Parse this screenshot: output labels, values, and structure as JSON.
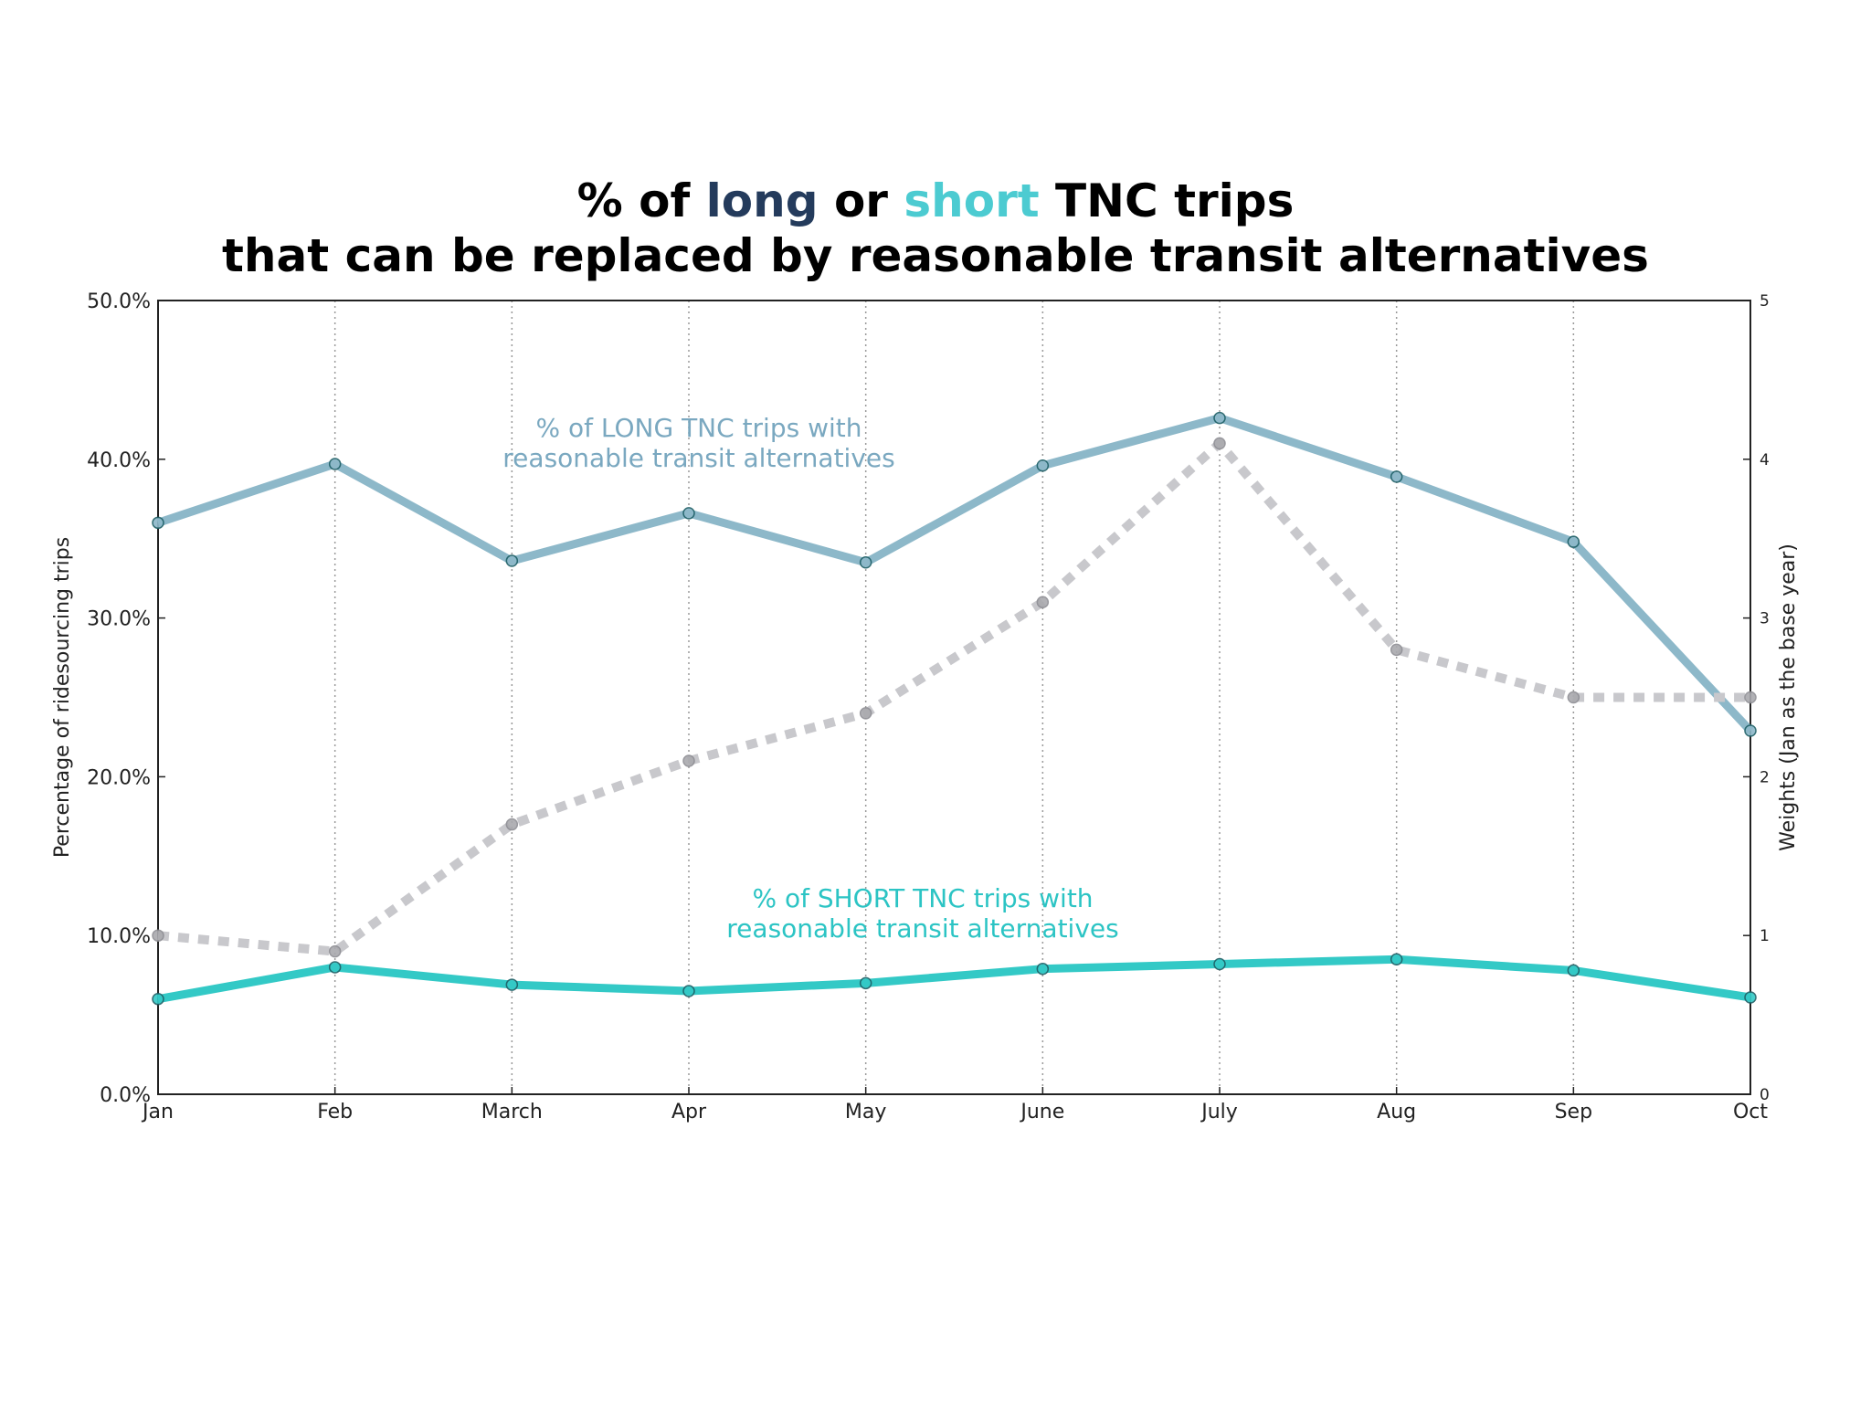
{
  "title": {
    "line1_pre": "% of ",
    "line1_long": "long",
    "line1_mid": " or ",
    "line1_short": "short",
    "line1_post": " TNC trips",
    "line2": "that can be replaced by reasonable transit alternatives"
  },
  "chart_data": {
    "type": "line",
    "categories": [
      "Jan",
      "Feb",
      "March",
      "Apr",
      "May",
      "June",
      "July",
      "Aug",
      "Sep",
      "Oct"
    ],
    "ylabel_left": "Percentage of ridesourcing trips",
    "ylabel_right": "Weights (Jan as the base year)",
    "ylim_left": [
      0,
      50
    ],
    "ylim_right": [
      0,
      5
    ],
    "yticks_left": [
      "0.0%",
      "10.0%",
      "20.0%",
      "30.0%",
      "40.0%",
      "50.0%"
    ],
    "yticks_right": [
      "0",
      "1",
      "2",
      "3",
      "4",
      "5"
    ],
    "grid": "vertical dotted at each month",
    "series": [
      {
        "axis": "left",
        "color": "#8db8c9",
        "style": "solid",
        "values": [
          36.0,
          39.7,
          33.6,
          36.6,
          33.5,
          39.6,
          42.6,
          38.9,
          34.8,
          22.9
        ],
        "annotation": [
          "% of LONG TNC trips with",
          "reasonable transit alternatives"
        ],
        "annotation_color": "#7aa8c0"
      },
      {
        "axis": "left",
        "color": "#33c9c6",
        "style": "solid",
        "values": [
          6.0,
          8.0,
          6.9,
          6.5,
          7.0,
          7.9,
          8.2,
          8.5,
          7.8,
          6.1
        ],
        "annotation": [
          "% of SHORT TNC trips with",
          "reasonable transit alternatives"
        ],
        "annotation_color": "#2cc4c4"
      },
      {
        "axis": "right",
        "color": "#c8c8cc",
        "style": "dotted",
        "values": [
          1.0,
          0.9,
          1.7,
          2.1,
          2.4,
          3.1,
          4.1,
          2.8,
          2.5,
          2.5
        ]
      }
    ]
  },
  "colors": {
    "title_long": "#243b5c",
    "title_short": "#4ccbd1",
    "title_text": "#000000"
  }
}
